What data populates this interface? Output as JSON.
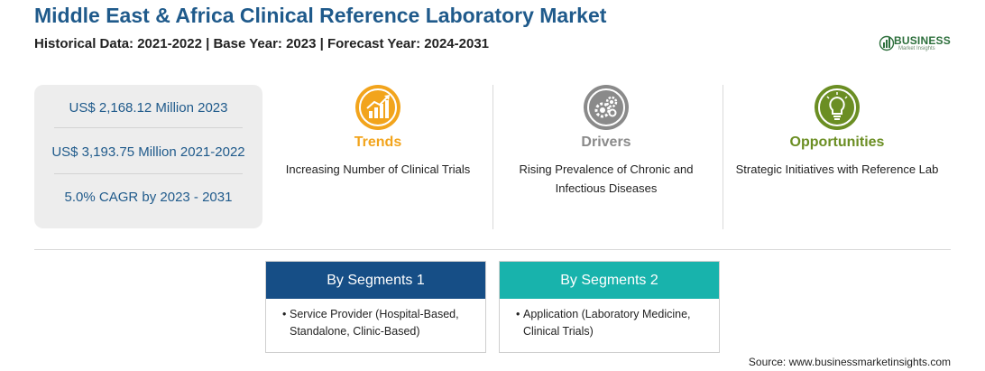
{
  "header": {
    "title": "Middle East & Africa Clinical Reference Laboratory Market",
    "subtitle": "Historical Data: 2021-2022 | Base Year: 2023 | Forecast Year: 2024-2031"
  },
  "logo": {
    "name": "BUSINESS",
    "tagline": "Market Insights",
    "icon": "bar-globe-logo-icon"
  },
  "stats": [
    "US$ 2,168.12 Million 2023",
    "US$ 3,193.75 Million 2021-2022",
    "5.0% CAGR by 2023 - 2031"
  ],
  "features": [
    {
      "label": "Trends",
      "desc": "Increasing Number of Clinical Trials",
      "icon": "trend-chart-icon",
      "color": "#f2a41c"
    },
    {
      "label": "Drivers",
      "desc": "Rising Prevalence of Chronic and Infectious Diseases",
      "icon": "gears-icon",
      "color": "#8a8a8a"
    },
    {
      "label": "Opportunities",
      "desc": "Strategic Initiatives with Reference Lab",
      "icon": "lightbulb-icon",
      "color": "#6b8e23"
    }
  ],
  "segments": [
    {
      "title": "By Segments 1",
      "items": [
        "Service Provider (Hospital-Based, Standalone, Clinic-Based)"
      ],
      "color": "#164e86"
    },
    {
      "title": "By Segments 2",
      "items": [
        "Application (Laboratory Medicine, Clinical Trials)"
      ],
      "color": "#18b3ac"
    }
  ],
  "source": "Source: www.businessmarketinsights.com"
}
